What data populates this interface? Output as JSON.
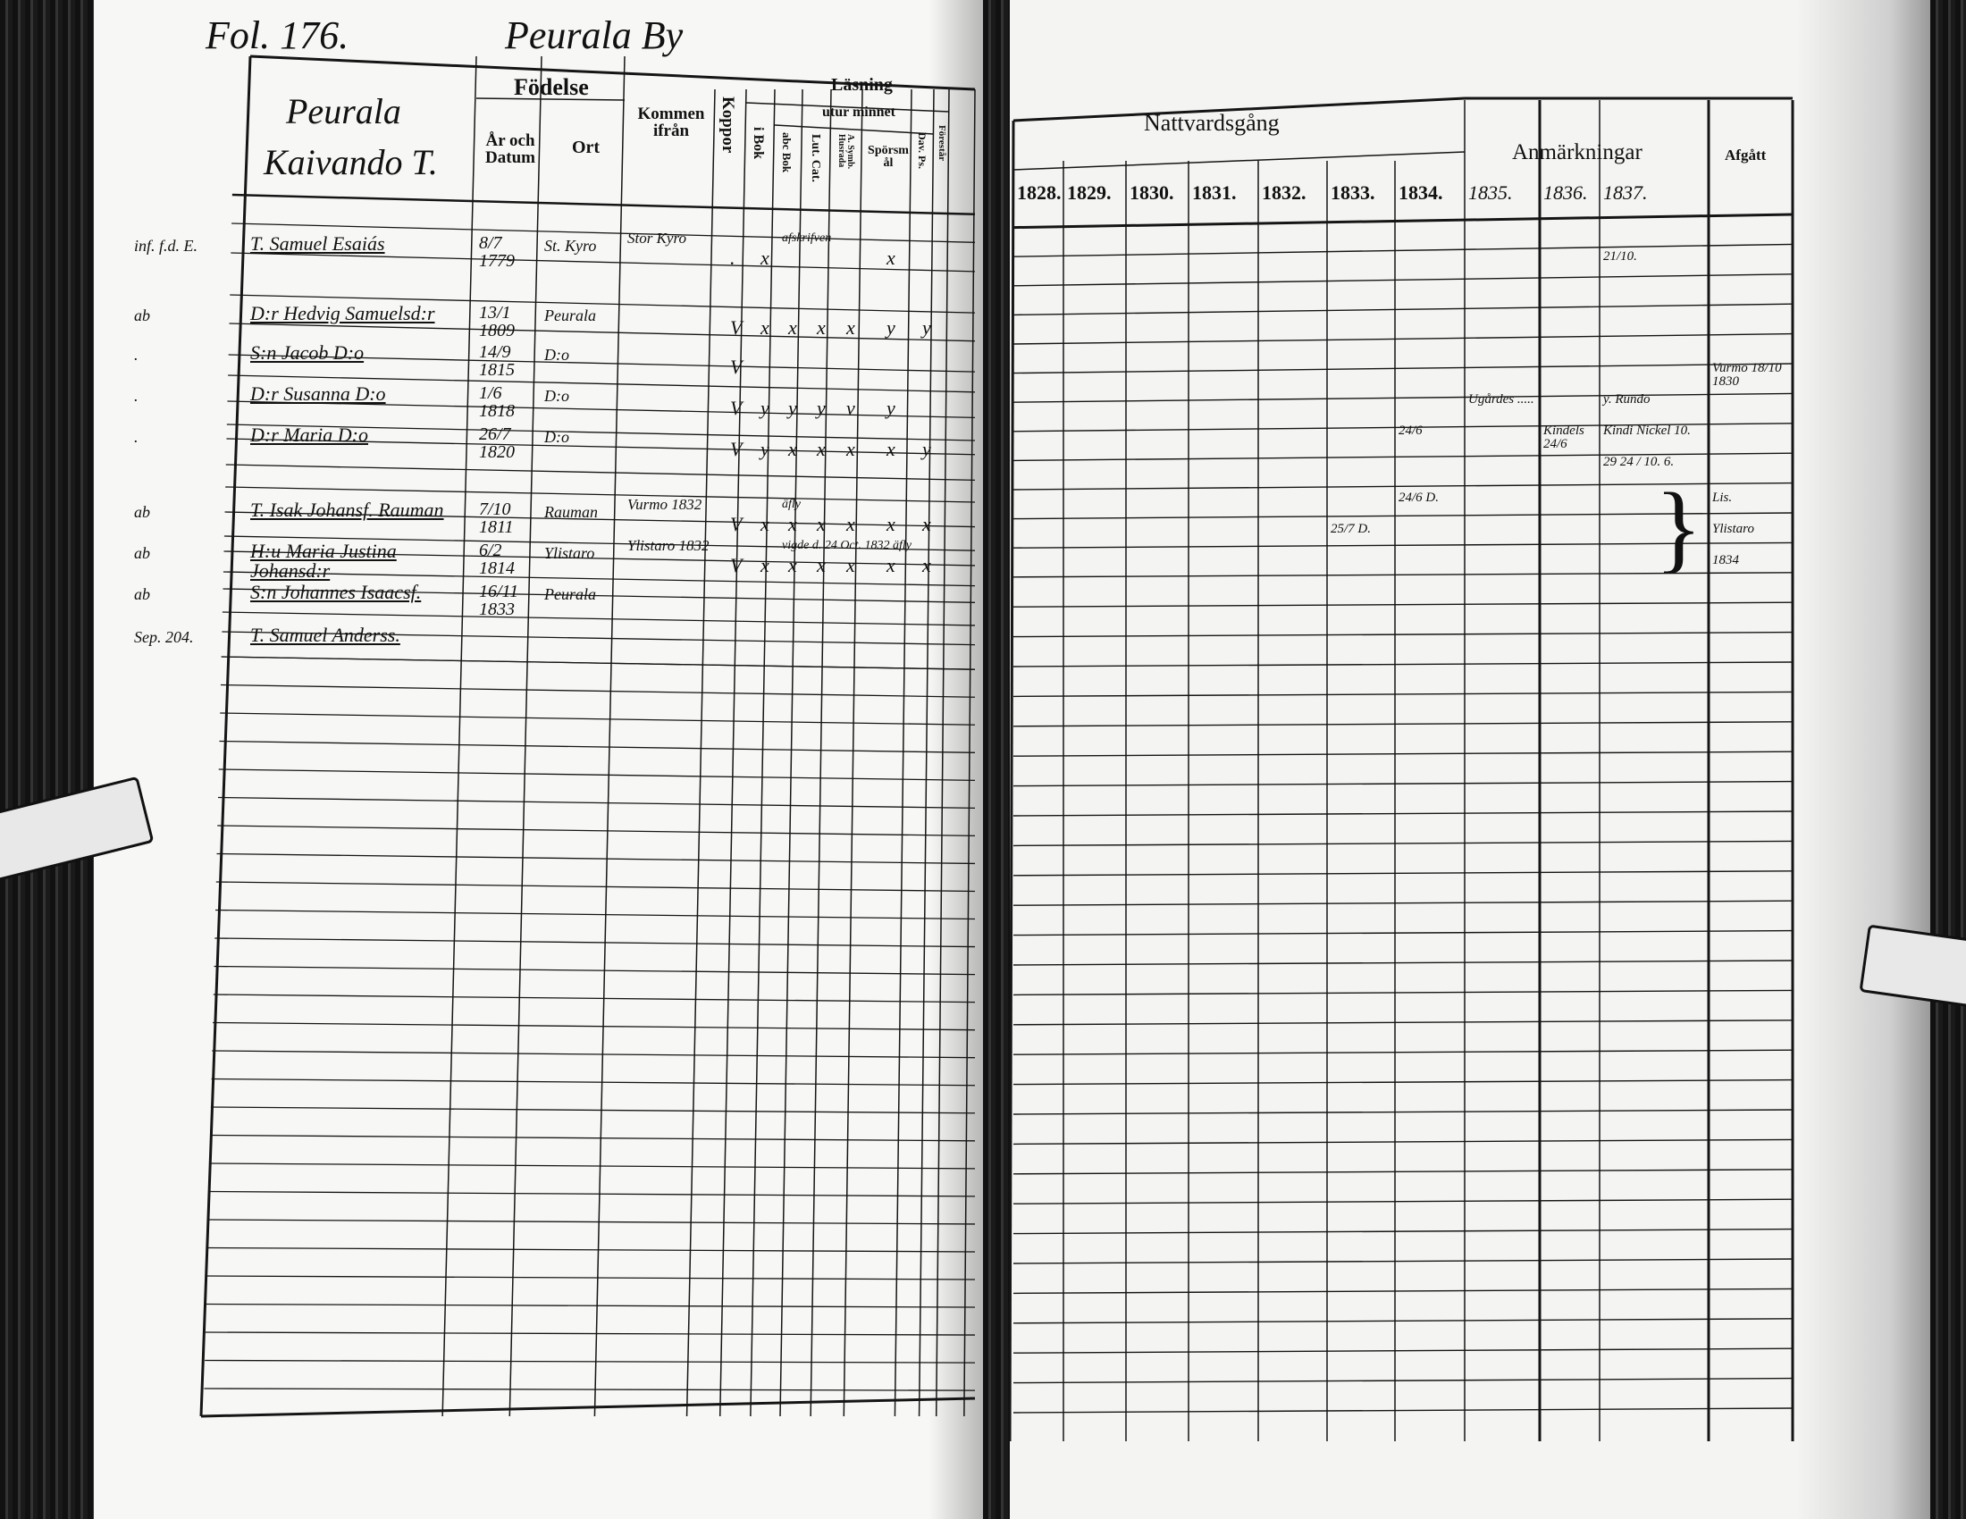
{
  "left_page": {
    "folio": "Fol. 176.",
    "village": "Peurala By",
    "household_heading": [
      "Peurala",
      "Kaivando T."
    ],
    "headers": {
      "fodelse": "Födelse",
      "ar_och_datum": "År och Datum",
      "ort": "Ort",
      "kommen_ifran": "Kommen ifrån",
      "koppor": "Koppor",
      "lasning": "Läsning",
      "utur_minnet": "utur minnet",
      "i_bok": "i Bok",
      "abc_bok": "abc Bok",
      "lut_cat": "Lut. Cat.",
      "a_symb": "A. Symb. Husrada",
      "sporsmal": "Spörsmål",
      "dav_ps": "Dav. Ps.",
      "forestar": "Förestår"
    },
    "entries": [
      {
        "prefix": "inf. f.d. E.",
        "name": "T. Samuel Esaiás",
        "date": "8/7 1779",
        "ort": "St. Kyro",
        "kommen": "Stor Kyro",
        "marks": [
          ".",
          "x",
          "",
          "",
          "",
          "x",
          "",
          ""
        ],
        "note": "afskrifven"
      },
      {
        "prefix": "ab",
        "name": "D:r Hedvig Samuelsd:r",
        "date": "13/1 1809",
        "ort": "Peurala",
        "kommen": "",
        "marks": [
          "V",
          "x",
          "x",
          "x",
          "x",
          "y",
          "y",
          ""
        ],
        "note": ""
      },
      {
        "prefix": ".",
        "name": "S:n Jacob  D:o",
        "date": "14/9 1815",
        "ort": "D:o",
        "kommen": "",
        "marks": [
          "V",
          "",
          "",
          "",
          "",
          "",
          "",
          ""
        ],
        "note": ""
      },
      {
        "prefix": ".",
        "name": "D:r Susanna  D:o",
        "date": "1/6 1818",
        "ort": "D:o",
        "kommen": "",
        "marks": [
          "V",
          "y",
          "y",
          "y",
          "v",
          "y",
          "",
          ""
        ],
        "note": ""
      },
      {
        "prefix": ".",
        "name": "D:r Maria  D:o",
        "date": "26/7 1820",
        "ort": "D:o",
        "kommen": "",
        "marks": [
          "V",
          "y",
          "x",
          "x",
          "x",
          "x",
          "y",
          ""
        ],
        "note": ""
      },
      {
        "prefix": "ab",
        "name": "T. Isak Johansf. Rauman",
        "date": "7/10 1811",
        "ort": "Rauman",
        "kommen": "Vurmo 1832",
        "marks": [
          "V",
          "x",
          "x",
          "x",
          "x",
          "x",
          "x",
          ""
        ],
        "note": "äfly"
      },
      {
        "prefix": "ab",
        "name": "H:u Maria Justina Johansd:r",
        "date": "6/2 1814",
        "ort": "Ylistaro",
        "kommen": "Ylistaro 1832",
        "marks": [
          "V",
          "x",
          "x",
          "x",
          "x",
          "x",
          "x",
          ""
        ],
        "note": "vigde d. 24 Oct. 1832  äfly"
      },
      {
        "prefix": "ab",
        "name": "S:n Johannes Isaacsf.",
        "date": "16/11 1833",
        "ort": "Peurala",
        "kommen": "",
        "marks": [
          "",
          "",
          "",
          "",
          "",
          "",
          "",
          ""
        ],
        "note": ""
      },
      {
        "prefix": "Sep. 204.",
        "name": "T. Samuel Anderss.",
        "date": "",
        "ort": "",
        "kommen": "",
        "marks": [
          "",
          "",
          "",
          "",
          "",
          "",
          "",
          ""
        ],
        "note": ""
      }
    ]
  },
  "right_page": {
    "headers": {
      "nattvardsgang": "Nattvardsgång",
      "anmarkningar": "Anmärkningar",
      "afgatt": "Afgått"
    },
    "years": [
      "1828.",
      "1829.",
      "1830.",
      "1831.",
      "1832.",
      "1833.",
      "1834.",
      "1835.",
      "1836.",
      "1837."
    ],
    "annotations": [
      {
        "col": 9,
        "row": 0,
        "text": "21/10."
      },
      {
        "col": 10,
        "row": 2,
        "text": "Vurmo 18/10 1830"
      },
      {
        "col": 7,
        "row": 3,
        "text": "Ugårdes ....."
      },
      {
        "col": 9,
        "row": 3,
        "text": "y. Rundo"
      },
      {
        "col": 6,
        "row": 4,
        "text": "24/6"
      },
      {
        "col": 8,
        "row": 4,
        "text": "Kindels 24/6"
      },
      {
        "col": 9,
        "row": 4,
        "text": "Kindi Nickel 10."
      },
      {
        "col": 9,
        "row": 5,
        "text": "29 24 / 10. 6."
      },
      {
        "col": 6,
        "row": 6,
        "text": "24/6 D."
      },
      {
        "col": 5,
        "row": 7,
        "text": "25/7 D."
      },
      {
        "col": 10,
        "row": 6,
        "text": "Lis."
      },
      {
        "col": 10,
        "row": 7,
        "text": "Ylistaro"
      },
      {
        "col": 10,
        "row": 8,
        "text": "1834"
      }
    ]
  }
}
